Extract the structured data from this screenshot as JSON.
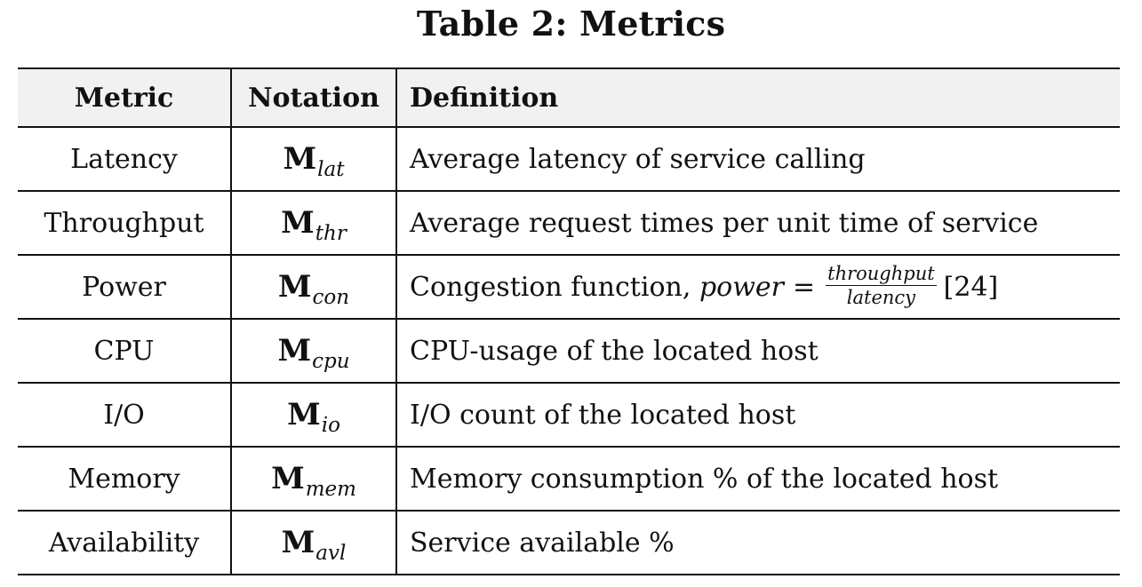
{
  "caption": "Table 2: Metrics",
  "headers": {
    "metric": "Metric",
    "notation": "Notation",
    "definition": "Definition"
  },
  "rows": [
    {
      "metric": "Latency",
      "notation_base": "M",
      "notation_sub": "lat",
      "definition": "Average latency of service calling"
    },
    {
      "metric": "Throughput",
      "notation_base": "M",
      "notation_sub": "thr",
      "definition": "Average request times per unit time of service"
    },
    {
      "metric": "Power",
      "notation_base": "M",
      "notation_sub": "con",
      "definition_prefix": "Congestion function,",
      "formula_lhs": "power",
      "formula_eq": "=",
      "formula_num": "throughput",
      "formula_den": "latency",
      "formula_ref": "[24]"
    },
    {
      "metric": "CPU",
      "notation_base": "M",
      "notation_sub": "cpu",
      "definition": "CPU-usage of the located host"
    },
    {
      "metric": "I/O",
      "notation_base": "M",
      "notation_sub": "io",
      "definition": "I/O count of the located host"
    },
    {
      "metric": "Memory",
      "notation_base": "M",
      "notation_sub": "mem",
      "definition": "Memory consumption % of the located host"
    },
    {
      "metric": "Availability",
      "notation_base": "M",
      "notation_sub": "avl",
      "definition": "Service available %"
    }
  ]
}
